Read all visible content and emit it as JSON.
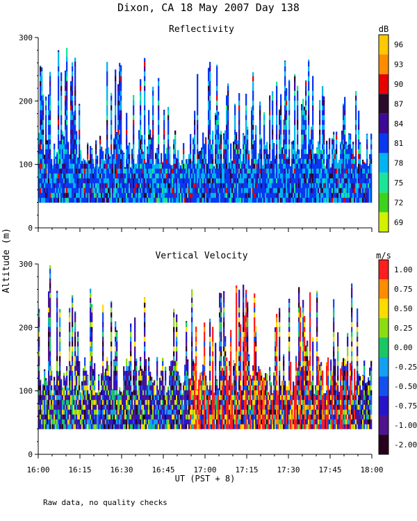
{
  "title": "Dixon, CA 18 May 2007  Day 138",
  "footer_note": "Raw data, no quality checks",
  "shared_ylabel": "Altitude (m)",
  "shared_xlabel": "UT  (PST + 8)",
  "chart_data": [
    {
      "type": "heatmap",
      "title": "Reflectivity",
      "x_ticks": [
        "16:00",
        "16:15",
        "16:30",
        "16:45",
        "17:00",
        "17:15",
        "17:30",
        "17:45",
        "18:00"
      ],
      "x_range": [
        "16:00",
        "18:00"
      ],
      "ylim": [
        0,
        300
      ],
      "y_ticks": [
        0,
        100,
        200,
        300
      ],
      "colorbar": {
        "unit": "dB",
        "labels": [
          "96",
          "93",
          "90",
          "87",
          "84",
          "81",
          "78",
          "75",
          "72",
          "69"
        ],
        "colors": [
          "#ffc800",
          "#ff8c00",
          "#e60000",
          "#2a0a2a",
          "#3c0a96",
          "#0a37f0",
          "#00b4f0",
          "#19e696",
          "#3cd21e",
          "#d2f000"
        ]
      },
      "data_min_altitude": 40
    },
    {
      "type": "heatmap",
      "title": "Vertical Velocity",
      "x_ticks": [
        "16:00",
        "16:15",
        "16:30",
        "16:45",
        "17:00",
        "17:15",
        "17:30",
        "17:45",
        "18:00"
      ],
      "x_range": [
        "16:00",
        "18:00"
      ],
      "ylim": [
        0,
        300
      ],
      "y_ticks": [
        0,
        100,
        200,
        300
      ],
      "colorbar": {
        "unit": "m/s",
        "labels": [
          "1.00",
          "0.75",
          "0.50",
          "0.25",
          "0.00",
          "-0.25",
          "-0.50",
          "-0.75",
          "-1.00",
          "-2.00"
        ],
        "colors": [
          "#ff1e1e",
          "#ff8c00",
          "#ffdc00",
          "#8cdc14",
          "#19c864",
          "#14a0f0",
          "#1450f0",
          "#2814c8",
          "#50148c",
          "#28001e"
        ]
      },
      "data_min_altitude": 40
    }
  ]
}
